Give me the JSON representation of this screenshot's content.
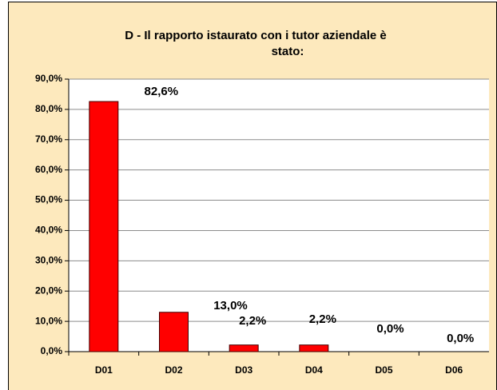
{
  "chart_data": {
    "type": "bar",
    "title": "D - Il rapporto istaurato con i tutor aziendale è stato:",
    "categories": [
      "D01",
      "D02",
      "D03",
      "D04",
      "D05",
      "D06"
    ],
    "values": [
      82.6,
      13.0,
      2.2,
      2.2,
      0.0,
      0.0
    ],
    "value_labels": [
      "82,6%",
      "13,0%",
      "2,2%",
      "2,2%",
      "0,0%",
      "0,0%"
    ],
    "color": "#ff0000",
    "ylim": [
      0,
      90
    ],
    "yticks": [
      {
        "value": 0,
        "label": "0,0%"
      },
      {
        "value": 10,
        "label": "10,0%"
      },
      {
        "value": 20,
        "label": "20,0%"
      },
      {
        "value": 30,
        "label": "30,0%"
      },
      {
        "value": 40,
        "label": "40,0%"
      },
      {
        "value": 50,
        "label": "50,0%"
      },
      {
        "value": 60,
        "label": "60,0%"
      },
      {
        "value": 70,
        "label": "70,0%"
      },
      {
        "value": 80,
        "label": "80,0%"
      },
      {
        "value": 90,
        "label": "90,0%"
      }
    ],
    "grid": true
  }
}
